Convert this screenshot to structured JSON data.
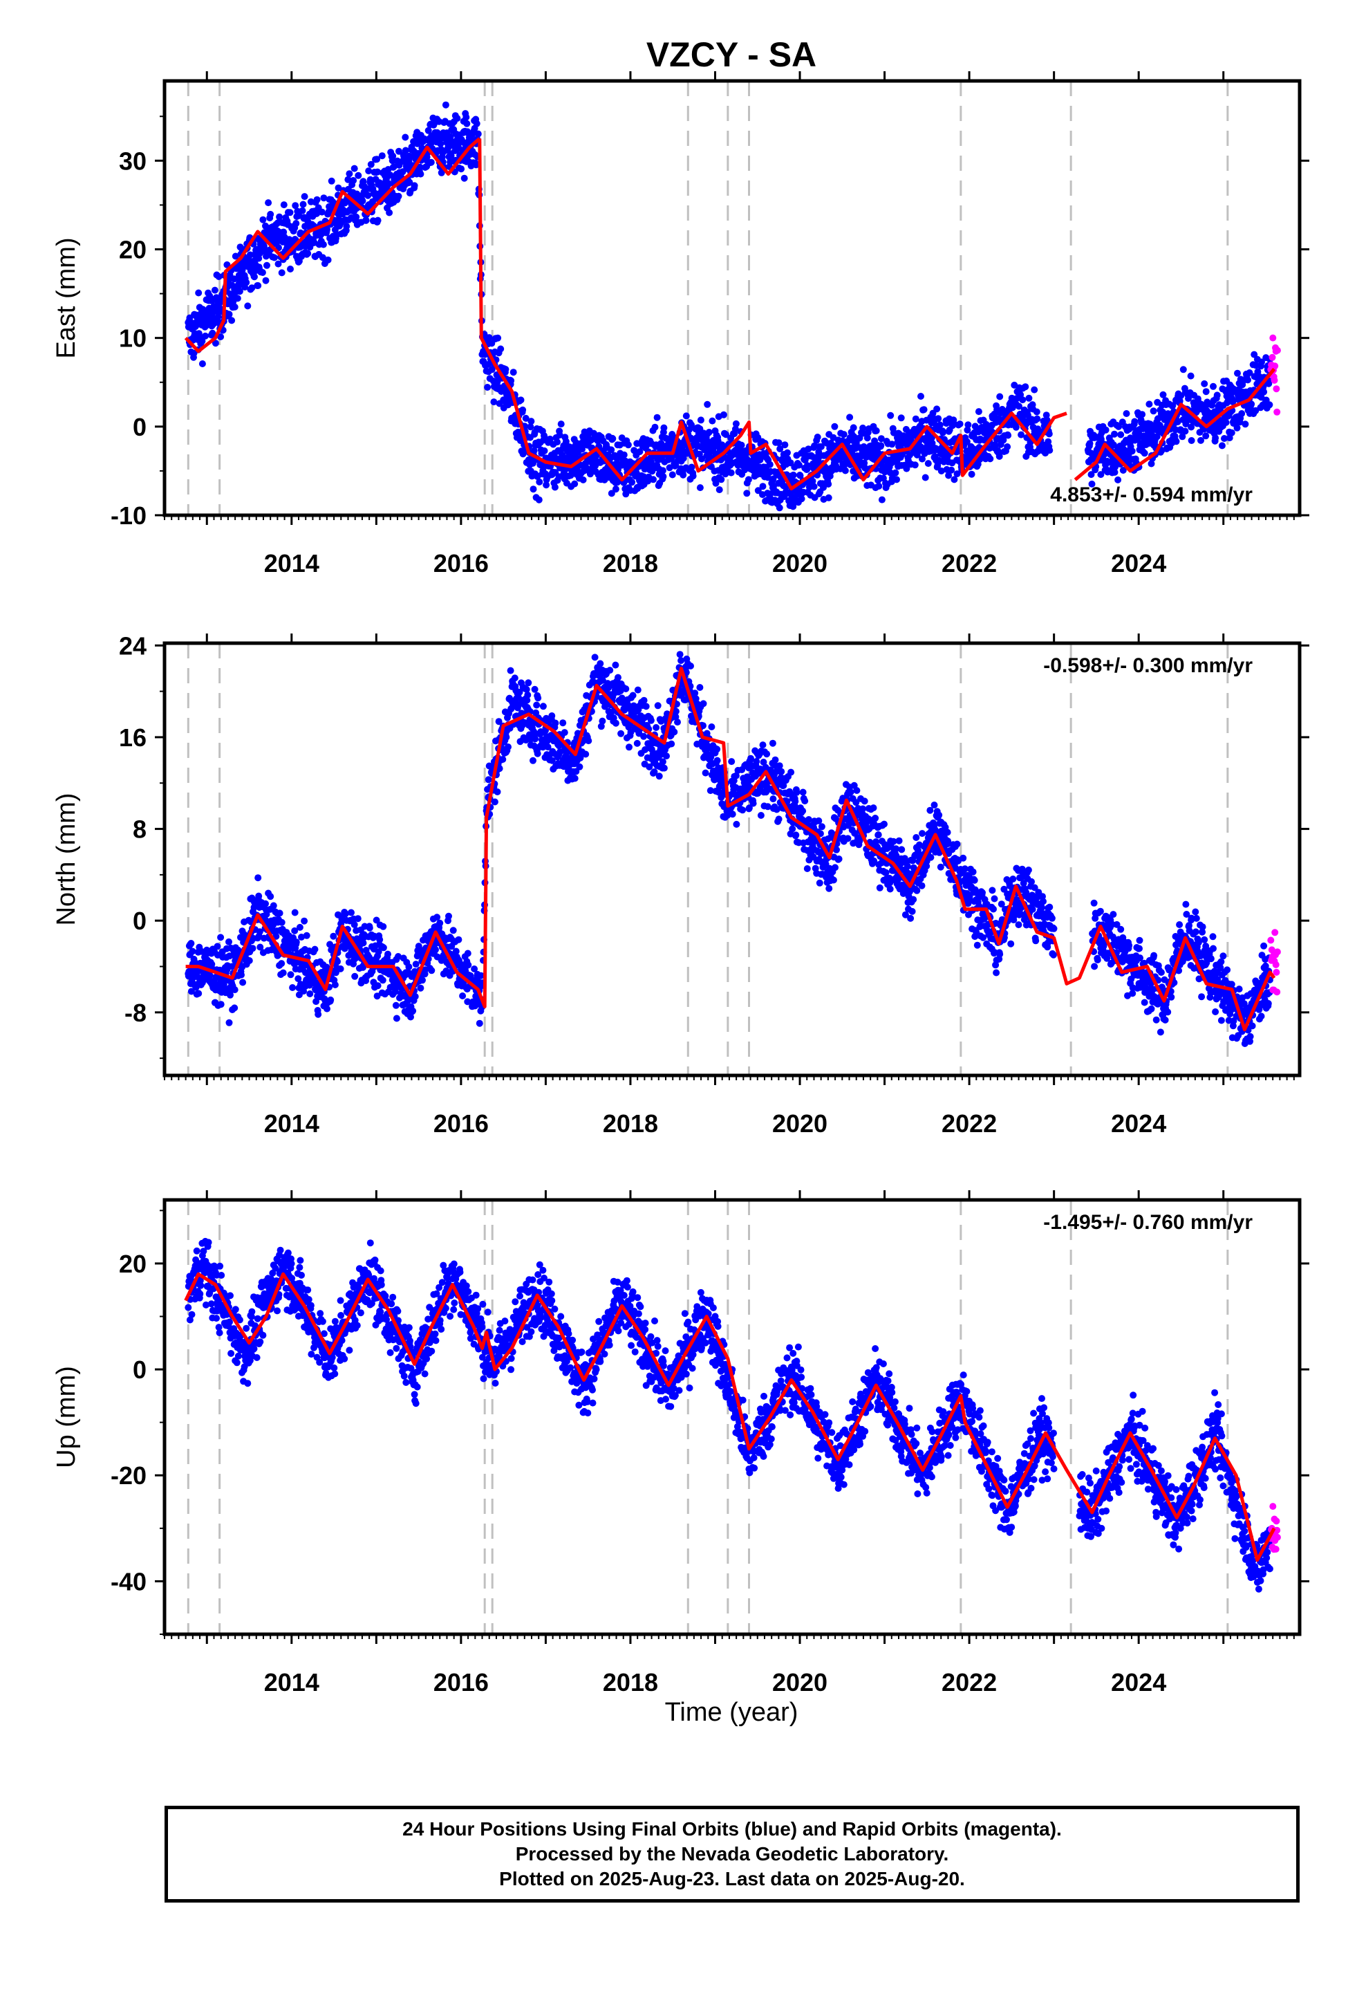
{
  "chart_data": {
    "type": "scatter",
    "title": "VZCY - SA",
    "xlabel": "Time (year)",
    "x_range": [
      2012.5,
      2025.9
    ],
    "x_ticks": [
      2014,
      2016,
      2018,
      2020,
      2022,
      2024
    ],
    "equipment_change_lines": [
      2012.78,
      2013.15,
      2016.28,
      2016.37,
      2018.68,
      2019.15,
      2019.4,
      2021.9,
      2023.2,
      2025.05
    ],
    "panels": [
      {
        "ylabel": "East (mm)",
        "ylim": [
          -10,
          39
        ],
        "y_ticks": [
          -10,
          0,
          10,
          20,
          30
        ],
        "rate_label": "4.853+/- 0.594 mm/yr",
        "rate_position": "bottom-right",
        "model_segments": [
          [
            [
              2012.75,
              10
            ],
            [
              2012.9,
              8.5
            ],
            [
              2013.1,
              10
            ],
            [
              2013.2,
              12
            ],
            [
              2013.22,
              17.5
            ],
            [
              2013.4,
              19
            ],
            [
              2013.6,
              22
            ],
            [
              2013.9,
              19
            ],
            [
              2014.2,
              22
            ],
            [
              2014.45,
              23
            ],
            [
              2014.6,
              26.5
            ],
            [
              2014.9,
              24
            ],
            [
              2015.2,
              27
            ],
            [
              2015.4,
              28.5
            ],
            [
              2015.6,
              31.5
            ],
            [
              2015.85,
              28.5
            ],
            [
              2016.1,
              31.5
            ],
            [
              2016.22,
              32.5
            ]
          ],
          [
            [
              2016.22,
              32.5
            ],
            [
              2016.24,
              10
            ],
            [
              2016.4,
              7
            ],
            [
              2016.6,
              4
            ],
            [
              2016.8,
              -3
            ],
            [
              2017.0,
              -4
            ],
            [
              2017.3,
              -4.5
            ],
            [
              2017.6,
              -2.5
            ],
            [
              2017.9,
              -6
            ],
            [
              2018.2,
              -3
            ],
            [
              2018.5,
              -3
            ],
            [
              2018.6,
              0.5
            ],
            [
              2018.8,
              -5
            ],
            [
              2019.1,
              -3
            ],
            [
              2019.3,
              -1
            ],
            [
              2019.4,
              0.5
            ],
            [
              2019.42,
              -3
            ],
            [
              2019.6,
              -2
            ],
            [
              2019.9,
              -7
            ],
            [
              2020.2,
              -5
            ],
            [
              2020.5,
              -2
            ],
            [
              2020.75,
              -6
            ],
            [
              2021.0,
              -3
            ],
            [
              2021.3,
              -2.5
            ],
            [
              2021.5,
              0
            ],
            [
              2021.8,
              -3
            ],
            [
              2021.9,
              -1
            ],
            [
              2021.92,
              -5.5
            ],
            [
              2022.2,
              -2
            ],
            [
              2022.5,
              1.5
            ],
            [
              2022.8,
              -2
            ],
            [
              2023.0,
              1
            ],
            [
              2023.15,
              1.5
            ]
          ],
          [
            [
              2023.25,
              -6
            ],
            [
              2023.5,
              -4
            ],
            [
              2023.6,
              -2
            ],
            [
              2023.9,
              -5
            ],
            [
              2024.2,
              -3
            ],
            [
              2024.5,
              2.5
            ],
            [
              2024.8,
              0
            ],
            [
              2025.05,
              2
            ],
            [
              2025.3,
              3
            ],
            [
              2025.6,
              6.5
            ]
          ]
        ],
        "data_trend": [
          [
            2012.78,
            10
          ],
          [
            2013.2,
            14
          ],
          [
            2013.7,
            21
          ],
          [
            2014.3,
            22
          ],
          [
            2014.7,
            25
          ],
          [
            2015.3,
            28
          ],
          [
            2015.7,
            32
          ],
          [
            2016.2,
            32
          ],
          [
            2016.25,
            9
          ],
          [
            2016.5,
            5
          ],
          [
            2016.9,
            -4
          ],
          [
            2017.5,
            -3
          ],
          [
            2018.0,
            -5
          ],
          [
            2018.6,
            -2
          ],
          [
            2019.2,
            -3
          ],
          [
            2019.9,
            -6
          ],
          [
            2020.5,
            -3
          ],
          [
            2021.0,
            -4
          ],
          [
            2021.5,
            -1
          ],
          [
            2022.0,
            -3
          ],
          [
            2022.6,
            2
          ],
          [
            2022.8,
            -1
          ],
          [
            2023.5,
            -3
          ],
          [
            2024.2,
            -1
          ],
          [
            2024.5,
            2
          ],
          [
            2024.9,
            1
          ],
          [
            2025.6,
            6
          ]
        ]
      },
      {
        "ylabel": "North (mm)",
        "ylim": [
          -13.5,
          24.2
        ],
        "y_ticks": [
          -8,
          0,
          8,
          16,
          24
        ],
        "rate_label": "-0.598+/- 0.300 mm/yr",
        "rate_position": "top-right",
        "model_segments": [
          [
            [
              2012.75,
              -4
            ],
            [
              2012.9,
              -4
            ],
            [
              2013.1,
              -4.5
            ],
            [
              2013.3,
              -5
            ],
            [
              2013.6,
              0.5
            ],
            [
              2013.9,
              -3
            ],
            [
              2014.2,
              -3.5
            ],
            [
              2014.4,
              -6
            ],
            [
              2014.6,
              -0.5
            ],
            [
              2014.9,
              -4
            ],
            [
              2015.2,
              -4
            ],
            [
              2015.4,
              -6.5
            ],
            [
              2015.7,
              -1
            ],
            [
              2015.95,
              -4.5
            ],
            [
              2016.2,
              -6
            ],
            [
              2016.28,
              -7.5
            ],
            [
              2016.3,
              9
            ],
            [
              2016.5,
              17
            ],
            [
              2016.8,
              18
            ],
            [
              2017.1,
              16.5
            ],
            [
              2017.35,
              14.5
            ],
            [
              2017.6,
              20.5
            ],
            [
              2017.9,
              18
            ],
            [
              2018.2,
              16.5
            ],
            [
              2018.4,
              15.5
            ],
            [
              2018.6,
              22
            ],
            [
              2018.85,
              16
            ],
            [
              2019.1,
              15.5
            ],
            [
              2019.15,
              10
            ],
            [
              2019.4,
              11
            ],
            [
              2019.6,
              13
            ],
            [
              2019.9,
              9
            ],
            [
              2020.2,
              7.5
            ],
            [
              2020.35,
              5.5
            ],
            [
              2020.55,
              10.5
            ],
            [
              2020.8,
              6.5
            ],
            [
              2021.1,
              5
            ],
            [
              2021.3,
              3
            ],
            [
              2021.6,
              7.5
            ],
            [
              2021.85,
              3.5
            ],
            [
              2021.95,
              1
            ],
            [
              2022.2,
              1
            ],
            [
              2022.35,
              -2
            ],
            [
              2022.55,
              3
            ],
            [
              2022.8,
              -1
            ],
            [
              2023.0,
              -1.5
            ],
            [
              2023.15,
              -5.5
            ],
            [
              2023.3,
              -5
            ],
            [
              2023.55,
              -0.5
            ],
            [
              2023.8,
              -4.5
            ],
            [
              2024.1,
              -4
            ],
            [
              2024.3,
              -7
            ],
            [
              2024.55,
              -1.5
            ],
            [
              2024.8,
              -5.5
            ],
            [
              2025.1,
              -6
            ],
            [
              2025.25,
              -9.5
            ],
            [
              2025.55,
              -4.5
            ],
            [
              2025.6,
              -5
            ]
          ]
        ],
        "data_trend": [
          [
            2012.78,
            -4
          ],
          [
            2013.3,
            -5
          ],
          [
            2013.6,
            0.5
          ],
          [
            2014.4,
            -6
          ],
          [
            2014.6,
            -1
          ],
          [
            2015.4,
            -6
          ],
          [
            2015.7,
            -1
          ],
          [
            2016.25,
            -7
          ],
          [
            2016.3,
            10
          ],
          [
            2016.6,
            19
          ],
          [
            2017.35,
            14
          ],
          [
            2017.6,
            21
          ],
          [
            2018.4,
            15
          ],
          [
            2018.6,
            22
          ],
          [
            2019.15,
            10
          ],
          [
            2019.6,
            13
          ],
          [
            2020.35,
            5
          ],
          [
            2020.55,
            10
          ],
          [
            2021.3,
            3
          ],
          [
            2021.6,
            8
          ],
          [
            2022.35,
            -2
          ],
          [
            2022.55,
            3
          ],
          [
            2023.1,
            -2
          ],
          [
            2023.6,
            -1
          ],
          [
            2024.3,
            -7
          ],
          [
            2024.55,
            -1
          ],
          [
            2025.25,
            -9
          ],
          [
            2025.6,
            -4
          ]
        ]
      },
      {
        "ylabel": "Up (mm)",
        "ylim": [
          -50,
          32
        ],
        "y_ticks": [
          -40,
          -20,
          0,
          20
        ],
        "rate_label": "-1.495+/- 0.760 mm/yr",
        "rate_position": "top-right",
        "model_segments": [
          [
            [
              2012.75,
              13
            ],
            [
              2012.9,
              18
            ],
            [
              2013.1,
              16
            ],
            [
              2013.3,
              10
            ],
            [
              2013.5,
              5
            ],
            [
              2013.7,
              10
            ],
            [
              2013.9,
              18
            ],
            [
              2014.15,
              12
            ],
            [
              2014.45,
              3
            ],
            [
              2014.65,
              9
            ],
            [
              2014.9,
              17
            ],
            [
              2015.15,
              11
            ],
            [
              2015.45,
              1
            ],
            [
              2015.65,
              8
            ],
            [
              2015.9,
              16
            ],
            [
              2016.15,
              8
            ],
            [
              2016.25,
              4
            ],
            [
              2016.3,
              7
            ],
            [
              2016.4,
              0
            ],
            [
              2016.6,
              4
            ],
            [
              2016.9,
              14
            ],
            [
              2017.15,
              8
            ],
            [
              2017.45,
              -2
            ],
            [
              2017.65,
              4
            ],
            [
              2017.9,
              12
            ],
            [
              2018.15,
              6
            ],
            [
              2018.45,
              -3
            ],
            [
              2018.65,
              3
            ],
            [
              2018.9,
              10
            ],
            [
              2019.15,
              2
            ],
            [
              2019.4,
              -15
            ],
            [
              2019.65,
              -9
            ],
            [
              2019.9,
              -2
            ],
            [
              2020.15,
              -8
            ],
            [
              2020.45,
              -17
            ],
            [
              2020.65,
              -11
            ],
            [
              2020.9,
              -3
            ],
            [
              2021.15,
              -10
            ],
            [
              2021.45,
              -19
            ],
            [
              2021.65,
              -13
            ],
            [
              2021.9,
              -5
            ],
            [
              2021.95,
              -10
            ],
            [
              2022.2,
              -18
            ],
            [
              2022.45,
              -26
            ],
            [
              2022.65,
              -20
            ],
            [
              2022.9,
              -12
            ],
            [
              2023.15,
              -19
            ],
            [
              2023.45,
              -27
            ],
            [
              2023.65,
              -20
            ],
            [
              2023.9,
              -12
            ],
            [
              2024.15,
              -19
            ],
            [
              2024.45,
              -28
            ],
            [
              2024.65,
              -22
            ],
            [
              2024.9,
              -13
            ],
            [
              2025.15,
              -20
            ],
            [
              2025.4,
              -36
            ],
            [
              2025.6,
              -30
            ]
          ]
        ],
        "data_trend": [
          [
            2012.78,
            14
          ],
          [
            2012.95,
            20
          ],
          [
            2013.45,
            3
          ],
          [
            2013.9,
            20
          ],
          [
            2014.45,
            2
          ],
          [
            2014.9,
            18
          ],
          [
            2015.45,
            0
          ],
          [
            2015.9,
            18
          ],
          [
            2016.4,
            1
          ],
          [
            2016.9,
            15
          ],
          [
            2017.45,
            -3
          ],
          [
            2017.9,
            13
          ],
          [
            2018.45,
            -4
          ],
          [
            2018.9,
            11
          ],
          [
            2019.4,
            -16
          ],
          [
            2019.9,
            -1
          ],
          [
            2020.45,
            -18
          ],
          [
            2020.9,
            -2
          ],
          [
            2021.45,
            -20
          ],
          [
            2021.9,
            -5
          ],
          [
            2022.45,
            -27
          ],
          [
            2022.85,
            -12
          ],
          [
            2023.45,
            -28
          ],
          [
            2023.9,
            -12
          ],
          [
            2024.45,
            -29
          ],
          [
            2024.9,
            -12
          ],
          [
            2025.4,
            -38
          ],
          [
            2025.6,
            -30
          ]
        ]
      }
    ],
    "colors": {
      "final_orbits": "#0000ff",
      "rapid_orbits": "#ff00ff",
      "model_fit": "#ff0000",
      "equipment_lines": "#c0c0c0"
    },
    "grid": false
  },
  "footer": {
    "line1": "24 Hour Positions Using Final Orbits (blue) and Rapid Orbits (magenta).",
    "line2": "Processed by the Nevada Geodetic Laboratory.",
    "line3": "Plotted on 2025-Aug-23. Last data on 2025-Aug-20."
  }
}
